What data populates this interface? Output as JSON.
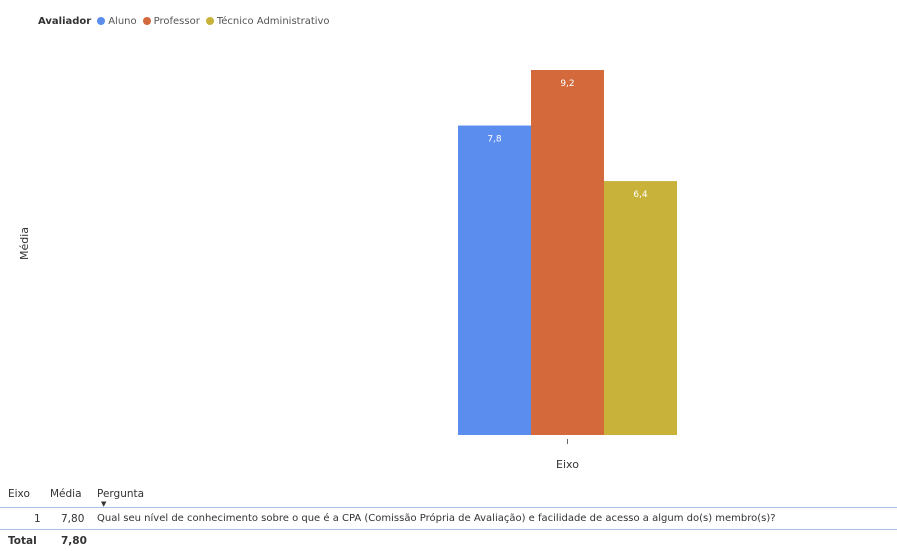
{
  "legend": {
    "title": "Avaliador",
    "items": [
      {
        "label": "Aluno",
        "color": "#5B8DEF"
      },
      {
        "label": "Professor",
        "color": "#D46A3C"
      },
      {
        "label": "Técnico Administrativo",
        "color": "#C8B23A"
      }
    ]
  },
  "chart_data": {
    "type": "bar",
    "categories": [
      "1"
    ],
    "series": [
      {
        "name": "Aluno",
        "values": [
          7.8
        ],
        "color": "#5B8DEF"
      },
      {
        "name": "Professor",
        "values": [
          9.2
        ],
        "color": "#D46A3C"
      },
      {
        "name": "Técnico Administrativo",
        "values": [
          6.4
        ],
        "color": "#C8B23A"
      }
    ],
    "data_labels": [
      "7,8",
      "9,2",
      "6,4"
    ],
    "xlabel": "Eixo",
    "ylabel": "Média",
    "ylim": [
      0,
      9.2
    ],
    "grid": false,
    "legend_position": "top-left"
  },
  "table": {
    "headers": {
      "eixo": "Eixo",
      "media": "Média",
      "pergunta": "Pergunta"
    },
    "rows": [
      {
        "eixo": "1",
        "media": "7,80",
        "pergunta": "Qual seu nível de conhecimento sobre o que é a CPA (Comissão Própria de Avaliação) e facilidade de acesso a algum do(s) membro(s)?"
      }
    ],
    "total": {
      "label": "Total",
      "media": "7,80"
    }
  }
}
